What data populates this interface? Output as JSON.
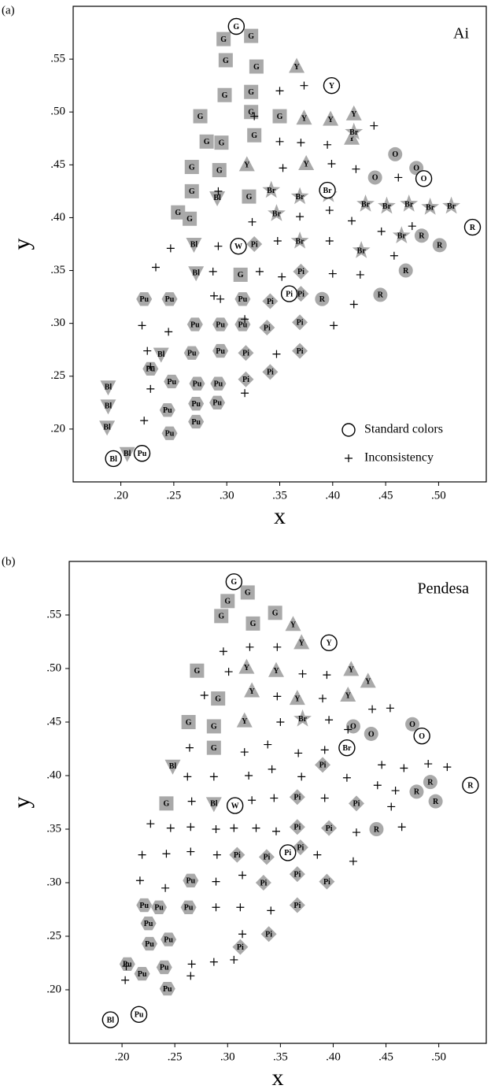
{
  "chart_data": [
    {
      "type": "scatter",
      "panel": "(a)",
      "title": "Ai",
      "xlabel": "x",
      "ylabel": "y",
      "xlim": [
        0.155,
        0.545
      ],
      "ylim": [
        0.15,
        0.6
      ],
      "xticks": [
        {
          "value": 0.2,
          "label": ".20"
        },
        {
          "value": 0.25,
          "label": ".25"
        },
        {
          "value": 0.3,
          "label": ".30"
        },
        {
          "value": 0.35,
          "label": ".35"
        },
        {
          "value": 0.4,
          "label": ".40"
        },
        {
          "value": 0.45,
          "label": ".45"
        },
        {
          "value": 0.5,
          "label": ".50"
        }
      ],
      "yticks": [
        {
          "value": 0.2,
          "label": ".20"
        },
        {
          "value": 0.25,
          "label": ".25"
        },
        {
          "value": 0.3,
          "label": ".30"
        },
        {
          "value": 0.35,
          "label": ".35"
        },
        {
          "value": 0.4,
          "label": ".40"
        },
        {
          "value": 0.45,
          "label": ".45"
        },
        {
          "value": 0.5,
          "label": ".50"
        },
        {
          "value": 0.55,
          "label": ".55"
        }
      ],
      "legend": "lower right",
      "series": [
        {
          "name": "G",
          "marker": "square",
          "color": "#a9a9a9",
          "x": [
            0.323,
            0.297,
            0.328,
            0.299,
            0.298,
            0.323,
            0.275,
            0.323,
            0.35,
            0.281,
            0.295,
            0.326,
            0.267,
            0.293,
            0.267,
            0.321,
            0.254,
            0.265,
            0.313
          ],
          "y": [
            0.572,
            0.569,
            0.543,
            0.549,
            0.516,
            0.519,
            0.496,
            0.5,
            0.496,
            0.472,
            0.471,
            0.478,
            0.448,
            0.445,
            0.425,
            0.42,
            0.405,
            0.399,
            0.346
          ]
        },
        {
          "name": "Y",
          "marker": "triangle",
          "color": "#a9a9a9",
          "x": [
            0.366,
            0.373,
            0.398,
            0.42,
            0.418,
            0.319,
            0.375
          ],
          "y": [
            0.543,
            0.494,
            0.493,
            0.498,
            0.475,
            0.45,
            0.451
          ]
        },
        {
          "name": "Br",
          "marker": "star",
          "color": "#a9a9a9",
          "x": [
            0.42,
            0.342,
            0.369,
            0.396,
            0.347,
            0.431,
            0.451,
            0.472,
            0.492,
            0.512,
            0.369,
            0.465,
            0.427
          ],
          "y": [
            0.481,
            0.426,
            0.42,
            0.422,
            0.404,
            0.413,
            0.411,
            0.413,
            0.41,
            0.411,
            0.378,
            0.383,
            0.369
          ]
        },
        {
          "name": "O",
          "marker": "circle",
          "color": "#a9a9a9",
          "x": [
            0.459,
            0.44,
            0.479
          ],
          "y": [
            0.46,
            0.438,
            0.447
          ]
        },
        {
          "name": "R",
          "marker": "circle",
          "color": "#a9a9a9",
          "x": [
            0.484,
            0.501,
            0.469,
            0.445,
            0.39
          ],
          "y": [
            0.383,
            0.374,
            0.35,
            0.327,
            0.323
          ]
        },
        {
          "name": "Bl",
          "marker": "down-triangle",
          "color": "#a9a9a9",
          "x": [
            0.291,
            0.269,
            0.271,
            0.238,
            0.188,
            0.188,
            0.187,
            0.206
          ],
          "y": [
            0.419,
            0.375,
            0.348,
            0.271,
            0.24,
            0.222,
            0.202,
            0.177
          ]
        },
        {
          "name": "Pi",
          "marker": "diamond",
          "color": "#a9a9a9",
          "x": [
            0.326,
            0.37,
            0.341,
            0.37,
            0.338,
            0.369,
            0.318,
            0.369,
            0.318,
            0.341
          ],
          "y": [
            0.375,
            0.349,
            0.321,
            0.328,
            0.296,
            0.301,
            0.272,
            0.274,
            0.247,
            0.254
          ]
        },
        {
          "name": "Pu",
          "marker": "hexagon",
          "color": "#a9a9a9",
          "x": [
            0.222,
            0.246,
            0.315,
            0.27,
            0.294,
            0.315,
            0.267,
            0.294,
            0.228,
            0.248,
            0.272,
            0.292,
            0.271,
            0.291,
            0.244,
            0.271,
            0.246
          ],
          "y": [
            0.323,
            0.323,
            0.323,
            0.299,
            0.299,
            0.299,
            0.272,
            0.274,
            0.257,
            0.245,
            0.243,
            0.243,
            0.224,
            0.225,
            0.218,
            0.207,
            0.196
          ]
        },
        {
          "name": "Standard colors",
          "marker": "ring",
          "in_legend": true,
          "labels": [
            "G",
            "Y",
            "Br",
            "O",
            "R",
            "W",
            "Pi",
            "Bl",
            "Pu"
          ],
          "x": [
            0.309,
            0.399,
            0.395,
            0.486,
            0.532,
            0.311,
            0.359,
            0.193,
            0.22
          ],
          "y": [
            0.581,
            0.525,
            0.426,
            0.437,
            0.391,
            0.373,
            0.328,
            0.172,
            0.177
          ]
        },
        {
          "name": "Inconsistency",
          "marker": "plus",
          "in_legend": true,
          "x": [
            0.35,
            0.373,
            0.326,
            0.439,
            0.35,
            0.37,
            0.395,
            0.399,
            0.353,
            0.422,
            0.462,
            0.292,
            0.369,
            0.397,
            0.324,
            0.418,
            0.446,
            0.475,
            0.247,
            0.292,
            0.348,
            0.397,
            0.233,
            0.287,
            0.331,
            0.352,
            0.4,
            0.426,
            0.458,
            0.288,
            0.294,
            0.42,
            0.22,
            0.245,
            0.317,
            0.401,
            0.225,
            0.228,
            0.228,
            0.347,
            0.317,
            0.222
          ],
          "y": [
            0.52,
            0.525,
            0.496,
            0.487,
            0.472,
            0.471,
            0.469,
            0.451,
            0.447,
            0.446,
            0.438,
            0.425,
            0.401,
            0.407,
            0.396,
            0.397,
            0.387,
            0.392,
            0.371,
            0.373,
            0.378,
            0.378,
            0.353,
            0.349,
            0.349,
            0.344,
            0.347,
            0.346,
            0.364,
            0.326,
            0.323,
            0.318,
            0.298,
            0.292,
            0.304,
            0.298,
            0.274,
            0.259,
            0.238,
            0.271,
            0.234,
            0.208
          ]
        }
      ]
    },
    {
      "type": "scatter",
      "panel": "(b)",
      "title": "Pendesa",
      "xlabel": "x",
      "ylabel": "y",
      "xlim": [
        0.15,
        0.545
      ],
      "ylim": [
        0.15,
        0.6
      ],
      "xticks": [
        {
          "value": 0.2,
          "label": ".20"
        },
        {
          "value": 0.25,
          "label": ".25"
        },
        {
          "value": 0.3,
          "label": ".30"
        },
        {
          "value": 0.35,
          "label": ".35"
        },
        {
          "value": 0.4,
          "label": ".40"
        },
        {
          "value": 0.45,
          "label": ".45"
        },
        {
          "value": 0.5,
          "label": ".50"
        }
      ],
      "yticks": [
        {
          "value": 0.2,
          "label": ".20"
        },
        {
          "value": 0.25,
          "label": ".25"
        },
        {
          "value": 0.3,
          "label": ".30"
        },
        {
          "value": 0.35,
          "label": ".35"
        },
        {
          "value": 0.4,
          "label": ".40"
        },
        {
          "value": 0.45,
          "label": ".45"
        },
        {
          "value": 0.5,
          "label": ".50"
        },
        {
          "value": 0.55,
          "label": ".55"
        }
      ],
      "series": [
        {
          "name": "G",
          "marker": "square",
          "color": "#a9a9a9",
          "x": [
            0.3,
            0.319,
            0.294,
            0.324,
            0.345,
            0.271,
            0.291,
            0.263,
            0.287,
            0.287,
            0.242
          ],
          "y": [
            0.563,
            0.571,
            0.549,
            0.542,
            0.552,
            0.498,
            0.472,
            0.45,
            0.446,
            0.426,
            0.374
          ]
        },
        {
          "name": "Y",
          "marker": "triangle",
          "color": "#a9a9a9",
          "x": [
            0.362,
            0.37,
            0.318,
            0.346,
            0.417,
            0.433,
            0.323,
            0.366,
            0.414,
            0.316
          ],
          "y": [
            0.541,
            0.524,
            0.501,
            0.498,
            0.499,
            0.488,
            0.479,
            0.472,
            0.475,
            0.451
          ]
        },
        {
          "name": "Br",
          "marker": "star",
          "color": "#a9a9a9",
          "x": [
            0.371
          ],
          "y": [
            0.453
          ]
        },
        {
          "name": "O",
          "marker": "circle",
          "color": "#a9a9a9",
          "x": [
            0.419,
            0.436,
            0.475
          ],
          "y": [
            0.446,
            0.439,
            0.448
          ]
        },
        {
          "name": "R",
          "marker": "circle",
          "color": "#a9a9a9",
          "x": [
            0.492,
            0.479,
            0.497,
            0.441
          ],
          "y": [
            0.394,
            0.385,
            0.376,
            0.35
          ]
        },
        {
          "name": "Bl",
          "marker": "down-triangle",
          "color": "#a9a9a9",
          "x": [
            0.248,
            0.287
          ],
          "y": [
            0.409,
            0.374
          ]
        },
        {
          "name": "Pi",
          "marker": "diamond",
          "color": "#a9a9a9",
          "x": [
            0.39,
            0.366,
            0.366,
            0.396,
            0.422,
            0.309,
            0.337,
            0.369,
            0.366,
            0.394,
            0.334,
            0.366,
            0.339,
            0.312
          ],
          "y": [
            0.41,
            0.38,
            0.352,
            0.351,
            0.374,
            0.326,
            0.324,
            0.333,
            0.308,
            0.301,
            0.3,
            0.279,
            0.252,
            0.24
          ]
        },
        {
          "name": "Pu",
          "marker": "hexagon",
          "color": "#a9a9a9",
          "x": [
            0.265,
            0.221,
            0.235,
            0.263,
            0.225,
            0.226,
            0.244,
            0.205,
            0.219,
            0.24,
            0.243
          ],
          "y": [
            0.302,
            0.279,
            0.277,
            0.277,
            0.262,
            0.243,
            0.247,
            0.224,
            0.215,
            0.221,
            0.201
          ]
        },
        {
          "name": "Standard colors",
          "marker": "ring",
          "labels": [
            "G",
            "Y",
            "Br",
            "O",
            "R",
            "W",
            "Pi",
            "Bl",
            "Pu"
          ],
          "x": [
            0.306,
            0.396,
            0.413,
            0.484,
            0.53,
            0.307,
            0.357,
            0.189,
            0.216
          ],
          "y": [
            0.581,
            0.524,
            0.426,
            0.437,
            0.391,
            0.372,
            0.328,
            0.172,
            0.177
          ]
        },
        {
          "name": "Inconsistency",
          "marker": "plus",
          "x": [
            0.296,
            0.321,
            0.347,
            0.301,
            0.371,
            0.394,
            0.278,
            0.347,
            0.39,
            0.437,
            0.454,
            0.35,
            0.396,
            0.414,
            0.264,
            0.316,
            0.338,
            0.367,
            0.392,
            0.262,
            0.287,
            0.32,
            0.342,
            0.37,
            0.413,
            0.446,
            0.467,
            0.49,
            0.508,
            0.442,
            0.459,
            0.455,
            0.465,
            0.266,
            0.323,
            0.344,
            0.392,
            0.227,
            0.246,
            0.265,
            0.289,
            0.306,
            0.327,
            0.346,
            0.422,
            0.219,
            0.242,
            0.265,
            0.29,
            0.385,
            0.419,
            0.217,
            0.241,
            0.289,
            0.314,
            0.289,
            0.312,
            0.341,
            0.314,
            0.204,
            0.203,
            0.266,
            0.287,
            0.306,
            0.265
          ],
          "y": [
            0.516,
            0.52,
            0.52,
            0.497,
            0.495,
            0.494,
            0.475,
            0.474,
            0.472,
            0.462,
            0.463,
            0.45,
            0.452,
            0.443,
            0.426,
            0.422,
            0.429,
            0.421,
            0.424,
            0.399,
            0.399,
            0.4,
            0.406,
            0.399,
            0.398,
            0.41,
            0.407,
            0.411,
            0.408,
            0.391,
            0.386,
            0.371,
            0.352,
            0.376,
            0.377,
            0.379,
            0.379,
            0.355,
            0.351,
            0.352,
            0.35,
            0.351,
            0.351,
            0.348,
            0.347,
            0.326,
            0.327,
            0.329,
            0.326,
            0.326,
            0.32,
            0.302,
            0.295,
            0.301,
            0.307,
            0.277,
            0.277,
            0.274,
            0.252,
            0.222,
            0.209,
            0.224,
            0.226,
            0.228,
            0.213
          ]
        }
      ]
    }
  ]
}
